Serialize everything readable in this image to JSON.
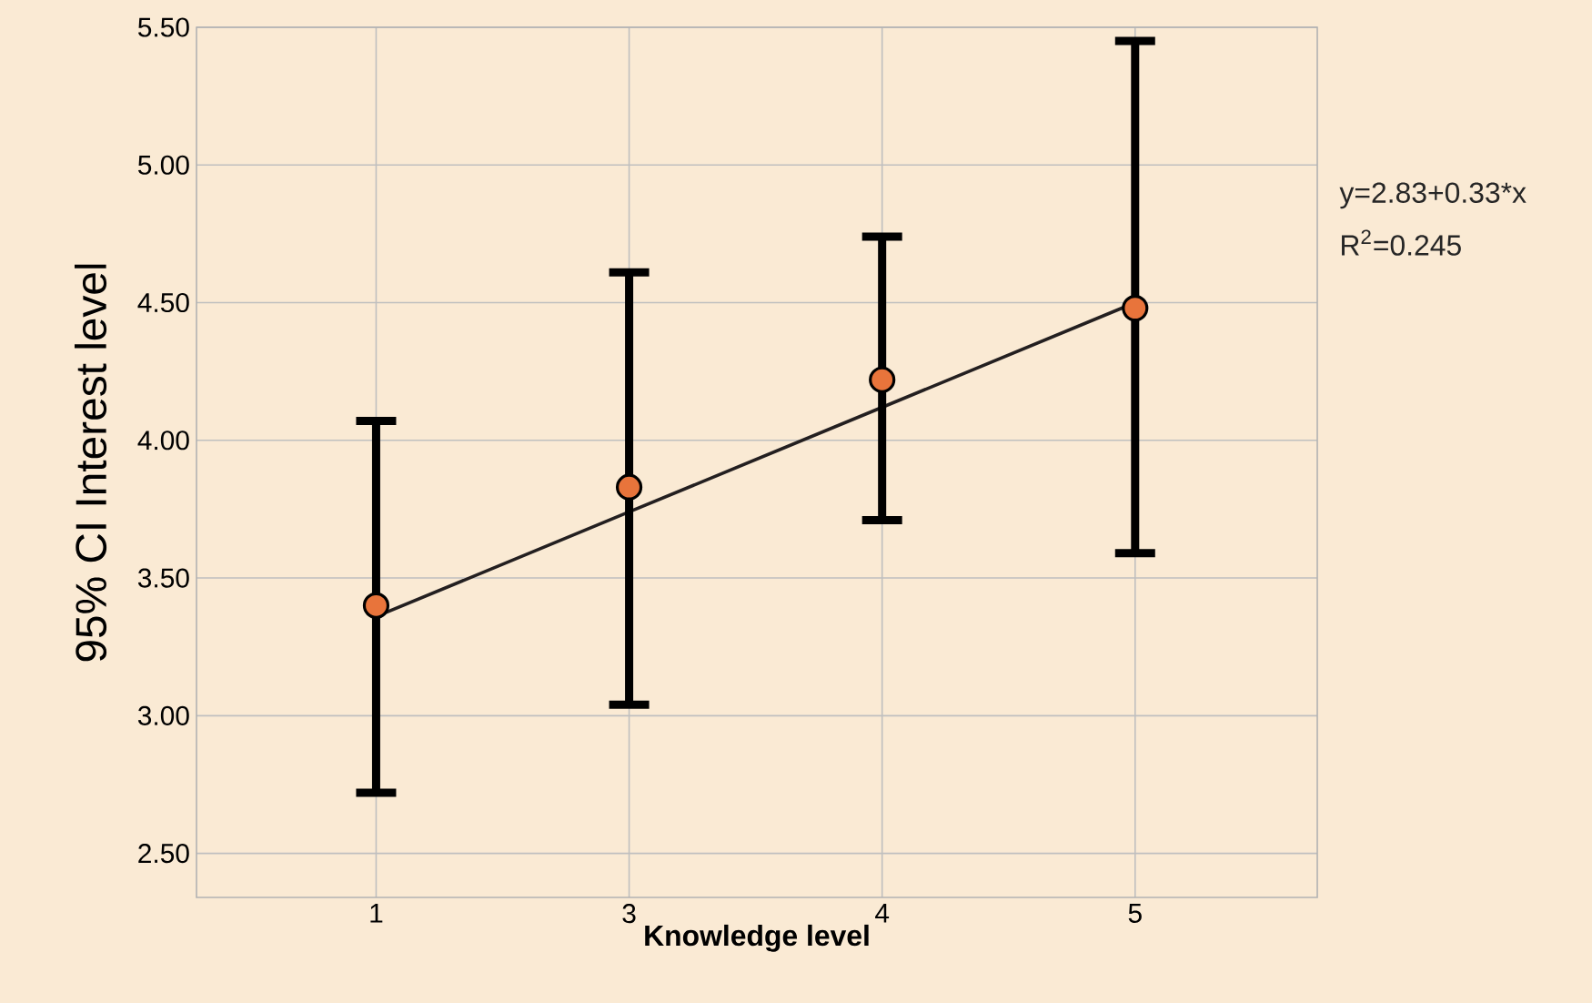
{
  "chart_data": {
    "type": "scatter",
    "xlabel": "Knowledge level",
    "ylabel": "95% CI Interest level",
    "categories": [
      "1",
      "3",
      "4",
      "5"
    ],
    "ylim": [
      2.34,
      5.5
    ],
    "yticks": [
      {
        "value": 2.5,
        "label": "2.50"
      },
      {
        "value": 3,
        "label": "3.00"
      },
      {
        "value": 3.5,
        "label": "3.50"
      },
      {
        "value": 4,
        "label": "4.00"
      },
      {
        "value": 4.5,
        "label": "4.50"
      },
      {
        "value": 5,
        "label": "5.00"
      },
      {
        "value": 5.5,
        "label": "5.50"
      }
    ],
    "grid": true,
    "series": [
      {
        "marker": "circle",
        "color": "#e8743b",
        "values": [
          3.4,
          3.83,
          4.22,
          4.48
        ],
        "errors": [
          [
            2.72,
            4.07
          ],
          [
            3.04,
            4.61
          ],
          [
            3.71,
            4.74
          ],
          [
            3.59,
            5.45
          ]
        ]
      },
      {
        "type": "line",
        "marker": "none",
        "color": "#231f20",
        "values": [
          3.36,
          3.74,
          4.12,
          4.5
        ]
      }
    ],
    "annotations": [
      "y=2.83+0.33*x",
      "R$^{2}$=0.245"
    ]
  }
}
